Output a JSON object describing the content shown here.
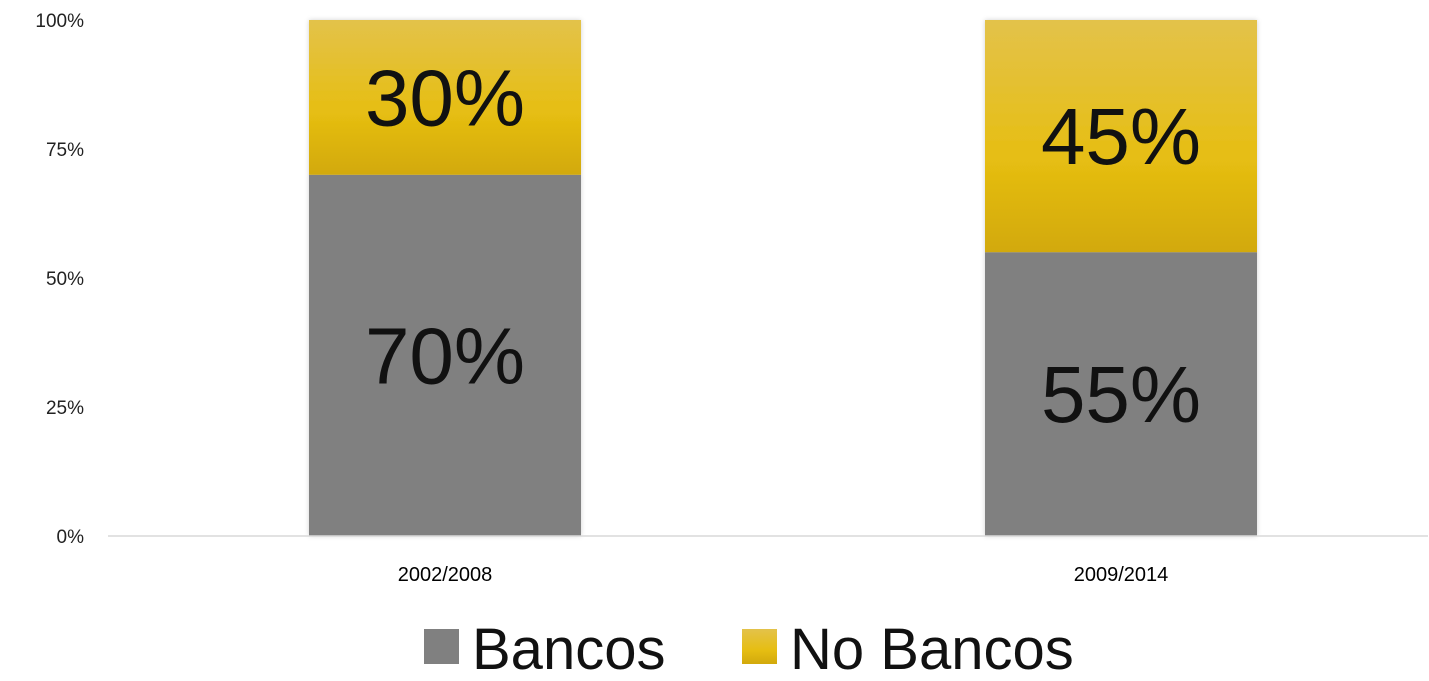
{
  "chart_data": {
    "type": "bar",
    "stacked": true,
    "percent": true,
    "categories": [
      "2002/2008",
      "2009/2014"
    ],
    "series": [
      {
        "name": "Bancos",
        "values": [
          70,
          55
        ],
        "labels": [
          "70%",
          "55%"
        ],
        "color": "#808080"
      },
      {
        "name": "No Bancos",
        "values": [
          30,
          45
        ],
        "labels": [
          "30%",
          "45%"
        ],
        "color": "#E2BE14"
      }
    ],
    "ylim": [
      0,
      100
    ],
    "yticks": [
      0,
      25,
      50,
      75,
      100
    ],
    "ytick_labels": [
      "0%",
      "25%",
      "50%",
      "75%",
      "100%"
    ],
    "grid": false,
    "legend": "bottom-center",
    "title": "",
    "xlabel": "",
    "ylabel": ""
  }
}
